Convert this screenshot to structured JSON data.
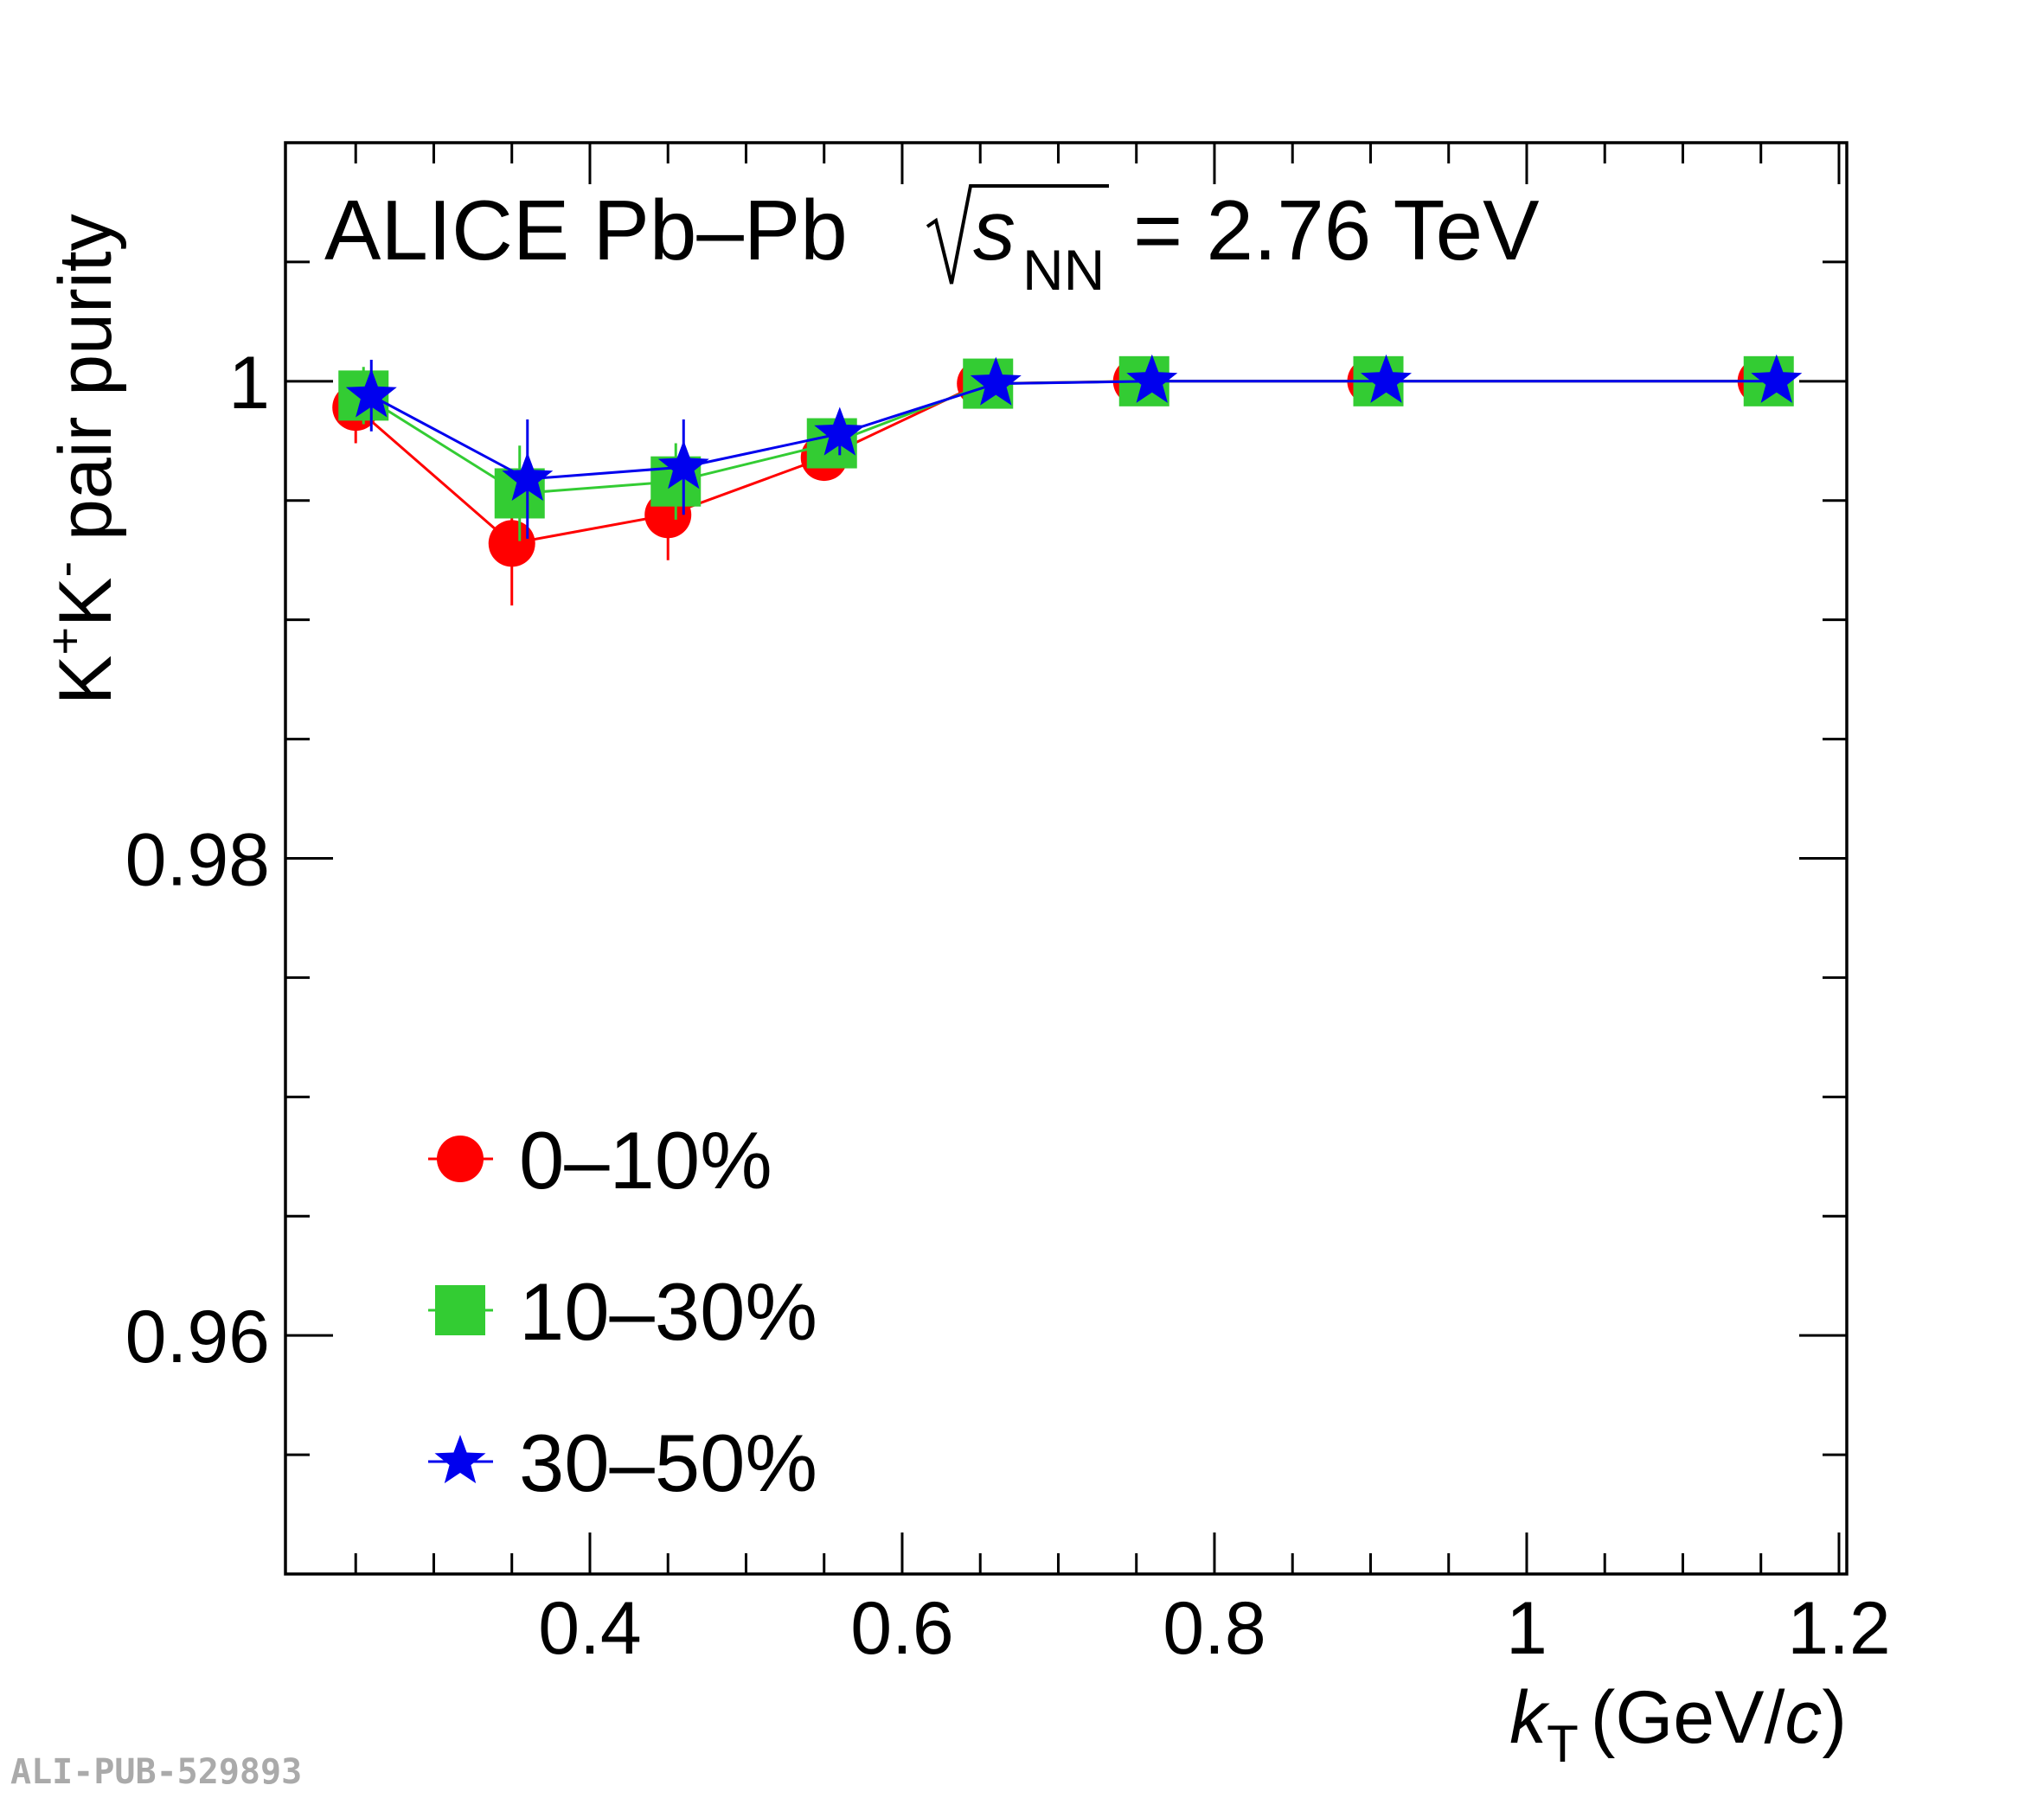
{
  "chart_data": {
    "type": "scatter",
    "header": {
      "prefix": "ALICE Pb–Pb",
      "sqrt_symbol": "s",
      "sqrt_subscript": "NN",
      "suffix": "= 2.76 TeV"
    },
    "xlabel": {
      "main": "k",
      "sub": "T",
      "unit_open": "(GeV/",
      "unit_var": "c",
      "unit_close": ")"
    },
    "ylabel": {
      "base": "K",
      "sup1": "+",
      "mid": "K",
      "sup2": "-",
      "rest": " pair purity"
    },
    "xlim": [
      0.205,
      1.205
    ],
    "ylim": [
      0.95,
      1.01
    ],
    "xticks": [
      {
        "value": 0.4,
        "label": "0.4"
      },
      {
        "value": 0.6,
        "label": "0.6"
      },
      {
        "value": 0.8,
        "label": "0.8"
      },
      {
        "value": 1.0,
        "label": "1"
      },
      {
        "value": 1.2,
        "label": "1.2"
      }
    ],
    "yticks": [
      {
        "value": 0.96,
        "label": "0.96"
      },
      {
        "value": 0.98,
        "label": "0.98"
      },
      {
        "value": 1.0,
        "label": "1"
      }
    ],
    "grid": false,
    "legend_position": "bottom-left",
    "series": [
      {
        "name": "0–10%",
        "marker": "circle",
        "color": "#ff0000",
        "x": [
          0.25,
          0.35,
          0.45,
          0.55,
          0.65,
          0.75,
          0.9,
          1.15
        ],
        "y": [
          0.9989,
          0.9932,
          0.9944,
          0.9968,
          0.9999,
          1.0,
          1.0,
          1.0
        ],
        "yerr": [
          0.0015,
          0.0026,
          0.0019,
          0.0008,
          0.0002,
          0.0001,
          0.0001,
          0.0001
        ]
      },
      {
        "name": "10–30%",
        "marker": "square",
        "color": "#33cc33",
        "x": [
          0.255,
          0.355,
          0.455,
          0.555,
          0.655,
          0.755,
          0.905,
          1.155
        ],
        "y": [
          0.9994,
          0.9953,
          0.9958,
          0.9974,
          0.9999,
          1.0,
          1.0,
          1.0
        ],
        "yerr": [
          0.0012,
          0.002,
          0.0016,
          0.0007,
          0.0002,
          0.0001,
          0.0001,
          0.0001
        ]
      },
      {
        "name": "30–50%",
        "marker": "star",
        "color": "#0000ee",
        "x": [
          0.26,
          0.36,
          0.46,
          0.56,
          0.66,
          0.76,
          0.91,
          1.16
        ],
        "y": [
          0.9994,
          0.9959,
          0.9964,
          0.9978,
          0.9999,
          1.0,
          1.0,
          1.0
        ],
        "yerr": [
          0.0015,
          0.0025,
          0.002,
          0.0009,
          0.0002,
          0.0001,
          0.0001,
          0.0001
        ]
      }
    ]
  },
  "watermark": "ALI-PUB-529893"
}
